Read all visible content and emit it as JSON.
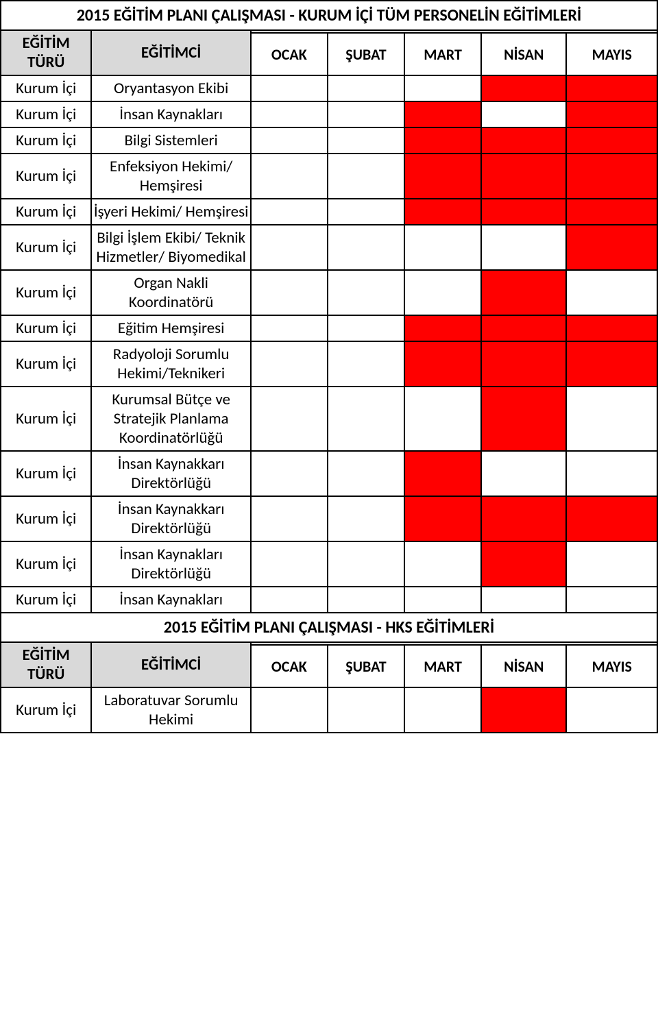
{
  "colors": {
    "headerBg": "#d9d9d9",
    "filled": "#ff0000",
    "border": "#000000",
    "text": "#000000",
    "pageBg": "#ffffff"
  },
  "section1": {
    "title": "2015 EĞİTİM PLANI ÇALIŞMASI - KURUM İÇİ TÜM PERSONELİN EĞİTİMLERİ",
    "headers": {
      "type": "EĞİTİM TÜRÜ",
      "trainer": "EĞİTİMCİ",
      "months": [
        "OCAK",
        "ŞUBAT",
        "MART",
        "NİSAN",
        "MAYIS"
      ]
    },
    "rows": [
      {
        "type": "Kurum İçi",
        "trainer": "Oryantasyon Ekibi",
        "cells": [
          false,
          false,
          false,
          true,
          true
        ]
      },
      {
        "type": "Kurum İçi",
        "trainer": "İnsan Kaynakları",
        "cells": [
          false,
          false,
          true,
          false,
          true
        ]
      },
      {
        "type": "Kurum İçi",
        "trainer": "Bilgi Sistemleri",
        "cells": [
          false,
          false,
          true,
          true,
          true
        ]
      },
      {
        "type": "Kurum İçi",
        "trainer": "Enfeksiyon Hekimi/ Hemşiresi",
        "cells": [
          false,
          false,
          true,
          true,
          true
        ]
      },
      {
        "type": "Kurum İçi",
        "trainer": "İşyeri Hekimi/ Hemşiresi",
        "cells": [
          false,
          false,
          true,
          true,
          true
        ]
      },
      {
        "type": "Kurum İçi",
        "trainer": "Bilgi İşlem Ekibi/ Teknik Hizmetler/ Biyomedikal",
        "cells": [
          false,
          false,
          false,
          false,
          true
        ]
      },
      {
        "type": "Kurum İçi",
        "trainer": "Organ Nakli Koordinatörü",
        "cells": [
          false,
          false,
          false,
          true,
          false
        ]
      },
      {
        "type": "Kurum İçi",
        "trainer": "Eğitim Hemşiresi",
        "cells": [
          false,
          false,
          true,
          true,
          true
        ]
      },
      {
        "type": "Kurum İçi",
        "trainer": "Radyoloji Sorumlu Hekimi/Teknikeri",
        "cells": [
          false,
          false,
          true,
          true,
          true
        ]
      },
      {
        "type": "Kurum İçi",
        "trainer": "Kurumsal Bütçe ve Stratejik Planlama Koordinatörlüğü",
        "cells": [
          false,
          false,
          false,
          true,
          false
        ]
      },
      {
        "type": "Kurum İçi",
        "trainer": "İnsan Kaynakkarı Direktörlüğü",
        "cells": [
          false,
          false,
          true,
          false,
          false
        ]
      },
      {
        "type": "Kurum İçi",
        "trainer": "İnsan Kaynakkarı Direktörlüğü",
        "cells": [
          false,
          false,
          true,
          true,
          true
        ]
      },
      {
        "type": "Kurum İçi",
        "trainer": "İnsan Kaynakları Direktörlüğü",
        "cells": [
          false,
          false,
          false,
          true,
          false
        ]
      },
      {
        "type": "Kurum İçi",
        "trainer": "İnsan Kaynakları",
        "cells": [
          false,
          false,
          false,
          false,
          false
        ]
      }
    ]
  },
  "section2": {
    "title": "2015 EĞİTİM PLANI ÇALIŞMASI - HKS EĞİTİMLERİ",
    "headers": {
      "type": "EĞİTİM TÜRÜ",
      "trainer": "EĞİTİMCİ",
      "months": [
        "OCAK",
        "ŞUBAT",
        "MART",
        "NİSAN",
        "MAYIS"
      ]
    },
    "rows": [
      {
        "type": "Kurum İçi",
        "trainer": "Laboratuvar Sorumlu Hekimi",
        "cells": [
          false,
          false,
          false,
          true,
          false
        ]
      }
    ]
  }
}
